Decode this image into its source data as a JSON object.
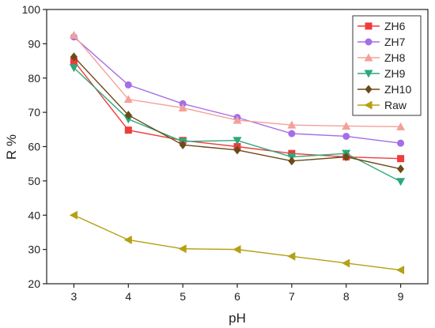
{
  "chart_data": {
    "type": "line",
    "xlabel": "pH",
    "ylabel": "R %",
    "x": [
      3,
      4,
      5,
      6,
      7,
      8,
      9
    ],
    "xlim": [
      2.5,
      9.5
    ],
    "ylim": [
      20,
      100
    ],
    "xticks": [
      "3",
      "4",
      "5",
      "6",
      "7",
      "8",
      "9"
    ],
    "yticks": [
      "20",
      "30",
      "40",
      "50",
      "60",
      "70",
      "80",
      "90",
      "100"
    ],
    "grid": false,
    "legend_position": "top-right",
    "series": [
      {
        "name": "ZH6",
        "color": "#f03c3c",
        "marker": "square",
        "values": [
          85,
          64.8,
          61.8,
          60,
          58,
          57,
          56.5
        ]
      },
      {
        "name": "ZH7",
        "color": "#a46ee8",
        "marker": "circle",
        "values": [
          92,
          78,
          72.5,
          68.5,
          63.8,
          63,
          61
        ]
      },
      {
        "name": "ZH8",
        "color": "#f4a09a",
        "marker": "triangle-up",
        "values": [
          92.5,
          73.8,
          71.3,
          67.7,
          66.3,
          66,
          65.8
        ]
      },
      {
        "name": "ZH9",
        "color": "#2ca87c",
        "marker": "triangle-down",
        "values": [
          83,
          68,
          61.5,
          61.8,
          57,
          58,
          49.8
        ]
      },
      {
        "name": "ZH10",
        "color": "#6b4a18",
        "marker": "diamond",
        "values": [
          86.2,
          69.2,
          60.5,
          59,
          55.8,
          57,
          53.5
        ]
      },
      {
        "name": "Raw",
        "color": "#b5a012",
        "marker": "triangle-left",
        "values": [
          40,
          32.8,
          30.2,
          30,
          28,
          26,
          24
        ]
      }
    ]
  }
}
